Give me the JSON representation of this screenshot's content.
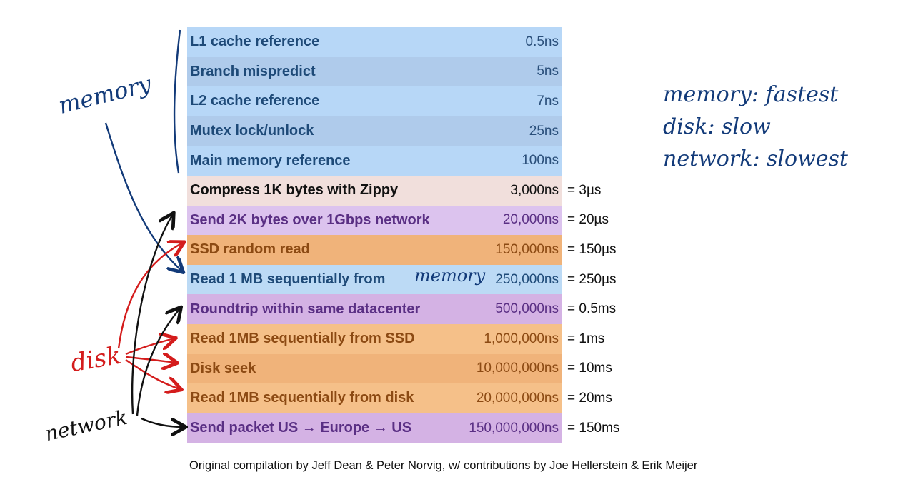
{
  "rows": [
    {
      "label": "L1 cache reference",
      "time": "0.5ns",
      "eq": "",
      "cat": "c-mem"
    },
    {
      "label": "Branch mispredict",
      "time": "5ns",
      "eq": "",
      "cat": "c-mem-alt"
    },
    {
      "label": "L2 cache reference",
      "time": "7ns",
      "eq": "",
      "cat": "c-mem"
    },
    {
      "label": "Mutex lock/unlock",
      "time": "25ns",
      "eq": "",
      "cat": "c-mem-alt"
    },
    {
      "label": "Main memory reference",
      "time": "100ns",
      "eq": "",
      "cat": "c-mem"
    },
    {
      "label": "Compress 1K bytes with Zippy",
      "time": "3,000ns",
      "eq": "= 3µs",
      "cat": "c-cpu"
    },
    {
      "label": "Send 2K bytes over 1Gbps network",
      "time": "20,000ns",
      "eq": "= 20µs",
      "cat": "c-net"
    },
    {
      "label": "SSD random read",
      "time": "150,000ns",
      "eq": "= 150µs",
      "cat": "c-disk"
    },
    {
      "label": "Read 1 MB sequentially from",
      "time": "250,000ns",
      "eq": "= 250µs",
      "cat": "c-mem2"
    },
    {
      "label": "Roundtrip within same datacenter",
      "time": "500,000ns",
      "eq": "= 0.5ms",
      "cat": "c-net-alt"
    },
    {
      "label": "Read 1MB sequentially from SSD",
      "time": "1,000,000ns",
      "eq": "= 1ms",
      "cat": "c-disk-alt"
    },
    {
      "label": "Disk seek",
      "time": "10,000,000ns",
      "eq": "= 10ms",
      "cat": "c-disk"
    },
    {
      "label": "Read 1MB sequentially from disk",
      "time": "20,000,000ns",
      "eq": "= 20ms",
      "cat": "c-disk-alt"
    },
    {
      "label": "Send packet US → Europe → US",
      "time": "150,000,000ns",
      "eq": "= 150ms",
      "cat": "c-net-alt"
    }
  ],
  "handwriting": {
    "memory": "memory",
    "memory_inline": "memory",
    "disk": "disk",
    "network": "network",
    "notes": [
      "memory: fastest",
      "disk: slow",
      "network: slowest"
    ]
  },
  "caption": "Original compilation by Jeff Dean & Peter Norvig, w/ contributions by Joe Hellerstein & Erik Meijer",
  "colors": {
    "memory": "#b7d7f7",
    "cpu": "#f1dfdc",
    "network": "#dcc3ee",
    "disk": "#f0b37a",
    "ink_blue": "#123a79",
    "ink_red": "#d41c1c"
  }
}
